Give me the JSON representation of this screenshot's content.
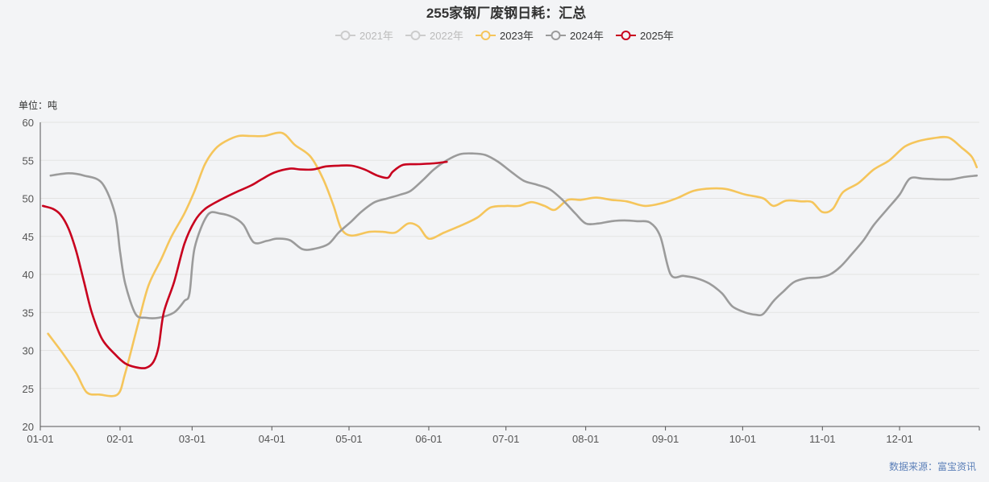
{
  "chart_data": {
    "type": "line",
    "title": "255家钢厂废钢日耗：汇总",
    "y_unit_label": "单位：吨",
    "source": "数据来源：富宝资讯",
    "ylim": [
      20,
      60
    ],
    "y_ticks": [
      20,
      25,
      30,
      35,
      40,
      45,
      50,
      55,
      60
    ],
    "x_ticks": [
      "01-01",
      "02-01",
      "03-01",
      "04-01",
      "05-01",
      "06-01",
      "07-01",
      "08-01",
      "09-01",
      "10-01",
      "11-01",
      "12-01"
    ],
    "grid": true,
    "legend_position": "top-center",
    "series": [
      {
        "name": "2021年",
        "color": "#cccccc",
        "active": false,
        "points": []
      },
      {
        "name": "2022年",
        "color": "#cccccc",
        "active": false,
        "points": []
      },
      {
        "name": "2023年",
        "color": "#f5c55b",
        "active": true,
        "points": [
          [
            "01-04",
            32.2
          ],
          [
            "01-10",
            29.5
          ],
          [
            "01-15",
            27.0
          ],
          [
            "01-19",
            24.5
          ],
          [
            "01-24",
            24.2
          ],
          [
            "01-31",
            24.2
          ],
          [
            "02-03",
            27.0
          ],
          [
            "02-08",
            33.5
          ],
          [
            "02-12",
            38.5
          ],
          [
            "02-17",
            42.0
          ],
          [
            "02-21",
            45.0
          ],
          [
            "02-26",
            48.0
          ],
          [
            "03-02",
            51.0
          ],
          [
            "03-06",
            54.5
          ],
          [
            "03-10",
            56.5
          ],
          [
            "03-14",
            57.5
          ],
          [
            "03-19",
            58.2
          ],
          [
            "03-24",
            58.2
          ],
          [
            "03-29",
            58.2
          ],
          [
            "04-05",
            58.6
          ],
          [
            "04-10",
            57.0
          ],
          [
            "04-16",
            55.5
          ],
          [
            "04-21",
            52.5
          ],
          [
            "04-25",
            49.0
          ],
          [
            "04-28",
            46.0
          ],
          [
            "05-02",
            45.1
          ],
          [
            "05-09",
            45.6
          ],
          [
            "05-14",
            45.6
          ],
          [
            "05-19",
            45.5
          ],
          [
            "05-24",
            46.7
          ],
          [
            "05-28",
            46.3
          ],
          [
            "06-01",
            44.7
          ],
          [
            "06-07",
            45.5
          ],
          [
            "06-14",
            46.5
          ],
          [
            "06-20",
            47.5
          ],
          [
            "06-25",
            48.8
          ],
          [
            "07-01",
            49.0
          ],
          [
            "07-06",
            49.0
          ],
          [
            "07-11",
            49.5
          ],
          [
            "07-16",
            49.0
          ],
          [
            "07-20",
            48.5
          ],
          [
            "07-25",
            49.8
          ],
          [
            "07-30",
            49.8
          ],
          [
            "08-05",
            50.1
          ],
          [
            "08-11",
            49.8
          ],
          [
            "08-17",
            49.6
          ],
          [
            "08-24",
            49.0
          ],
          [
            "08-31",
            49.4
          ],
          [
            "09-06",
            50.1
          ],
          [
            "09-12",
            51.0
          ],
          [
            "09-19",
            51.3
          ],
          [
            "09-25",
            51.2
          ],
          [
            "10-02",
            50.5
          ],
          [
            "10-09",
            50.0
          ],
          [
            "10-13",
            49.0
          ],
          [
            "10-18",
            49.7
          ],
          [
            "10-24",
            49.6
          ],
          [
            "10-28",
            49.5
          ],
          [
            "11-01",
            48.2
          ],
          [
            "11-05",
            48.6
          ],
          [
            "11-09",
            50.8
          ],
          [
            "11-15",
            52.0
          ],
          [
            "11-21",
            53.8
          ],
          [
            "11-27",
            55.0
          ],
          [
            "12-03",
            56.8
          ],
          [
            "12-08",
            57.5
          ],
          [
            "12-14",
            57.9
          ],
          [
            "12-20",
            58.0
          ],
          [
            "12-25",
            56.7
          ],
          [
            "12-29",
            55.5
          ],
          [
            "12-31",
            54.1
          ]
        ]
      },
      {
        "name": "2024年",
        "color": "#9b9b9b",
        "active": true,
        "points": [
          [
            "01-05",
            53.0
          ],
          [
            "01-12",
            53.3
          ],
          [
            "01-18",
            53.0
          ],
          [
            "01-25",
            52.0
          ],
          [
            "01-30",
            48.0
          ],
          [
            "02-01",
            43.0
          ],
          [
            "02-03",
            38.8
          ],
          [
            "02-07",
            34.8
          ],
          [
            "02-11",
            34.3
          ],
          [
            "02-16",
            34.3
          ],
          [
            "02-22",
            35.0
          ],
          [
            "02-26",
            36.5
          ],
          [
            "02-28",
            37.5
          ],
          [
            "03-02",
            43.5
          ],
          [
            "03-07",
            47.8
          ],
          [
            "03-12",
            48.0
          ],
          [
            "03-17",
            47.5
          ],
          [
            "03-21",
            46.5
          ],
          [
            "03-25",
            44.2
          ],
          [
            "03-30",
            44.4
          ],
          [
            "04-03",
            44.7
          ],
          [
            "04-08",
            44.5
          ],
          [
            "04-13",
            43.3
          ],
          [
            "04-18",
            43.4
          ],
          [
            "04-23",
            44.0
          ],
          [
            "04-27",
            45.5
          ],
          [
            "05-02",
            47.0
          ],
          [
            "05-06",
            48.3
          ],
          [
            "05-11",
            49.5
          ],
          [
            "05-16",
            50.0
          ],
          [
            "05-21",
            50.5
          ],
          [
            "05-25",
            51.0
          ],
          [
            "05-30",
            52.5
          ],
          [
            "06-03",
            53.8
          ],
          [
            "06-08",
            55.0
          ],
          [
            "06-13",
            55.8
          ],
          [
            "06-18",
            55.9
          ],
          [
            "06-23",
            55.7
          ],
          [
            "06-28",
            54.8
          ],
          [
            "07-03",
            53.5
          ],
          [
            "07-08",
            52.3
          ],
          [
            "07-13",
            51.8
          ],
          [
            "07-18",
            51.2
          ],
          [
            "07-23",
            49.8
          ],
          [
            "07-28",
            48.0
          ],
          [
            "08-01",
            46.7
          ],
          [
            "08-06",
            46.7
          ],
          [
            "08-11",
            47.0
          ],
          [
            "08-16",
            47.1
          ],
          [
            "08-21",
            47.0
          ],
          [
            "08-26",
            46.8
          ],
          [
            "08-30",
            45.0
          ],
          [
            "09-03",
            40.0
          ],
          [
            "09-08",
            39.8
          ],
          [
            "09-13",
            39.5
          ],
          [
            "09-18",
            38.8
          ],
          [
            "09-23",
            37.5
          ],
          [
            "09-27",
            35.8
          ],
          [
            "10-02",
            35.0
          ],
          [
            "10-06",
            34.7
          ],
          [
            "10-09",
            34.8
          ],
          [
            "10-13",
            36.5
          ],
          [
            "10-17",
            37.8
          ],
          [
            "10-21",
            39.0
          ],
          [
            "10-26",
            39.5
          ],
          [
            "10-31",
            39.6
          ],
          [
            "11-04",
            40.0
          ],
          [
            "11-08",
            41.0
          ],
          [
            "11-12",
            42.5
          ],
          [
            "11-17",
            44.5
          ],
          [
            "11-21",
            46.5
          ],
          [
            "11-26",
            48.5
          ],
          [
            "12-01",
            50.5
          ],
          [
            "12-05",
            52.6
          ],
          [
            "12-10",
            52.6
          ],
          [
            "12-16",
            52.5
          ],
          [
            "12-21",
            52.5
          ],
          [
            "12-26",
            52.8
          ],
          [
            "12-31",
            53.0
          ]
        ]
      },
      {
        "name": "2025年",
        "color": "#c8001e",
        "active": true,
        "points": [
          [
            "01-02",
            49.0
          ],
          [
            "01-06",
            48.6
          ],
          [
            "01-09",
            47.8
          ],
          [
            "01-12",
            46.0
          ],
          [
            "01-15",
            43.0
          ],
          [
            "01-18",
            39.0
          ],
          [
            "01-21",
            35.0
          ],
          [
            "01-25",
            31.5
          ],
          [
            "01-30",
            29.5
          ],
          [
            "02-03",
            28.3
          ],
          [
            "02-07",
            27.8
          ],
          [
            "02-11",
            27.7
          ],
          [
            "02-14",
            28.5
          ],
          [
            "02-16",
            30.5
          ],
          [
            "02-18",
            35.0
          ],
          [
            "02-22",
            39.0
          ],
          [
            "02-26",
            44.0
          ],
          [
            "03-02",
            47.0
          ],
          [
            "03-06",
            48.6
          ],
          [
            "03-12",
            49.8
          ],
          [
            "03-18",
            50.8
          ],
          [
            "03-24",
            51.7
          ],
          [
            "03-28",
            52.5
          ],
          [
            "04-02",
            53.4
          ],
          [
            "04-08",
            53.9
          ],
          [
            "04-12",
            53.8
          ],
          [
            "04-17",
            53.8
          ],
          [
            "04-22",
            54.2
          ],
          [
            "04-27",
            54.3
          ],
          [
            "05-02",
            54.3
          ],
          [
            "05-07",
            53.8
          ],
          [
            "05-12",
            53.0
          ],
          [
            "05-16",
            52.7
          ],
          [
            "05-18",
            53.5
          ],
          [
            "05-22",
            54.4
          ],
          [
            "05-28",
            54.5
          ],
          [
            "06-03",
            54.6
          ],
          [
            "06-08",
            54.8
          ]
        ]
      }
    ]
  }
}
